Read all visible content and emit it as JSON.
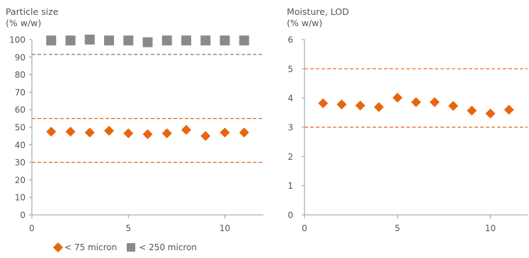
{
  "colors": {
    "diamond": "#e8650e",
    "square": "#8a8a8a",
    "limit_orange": "#e8650e",
    "limit_grey": "#6e6e6e",
    "axis": "#9a9a9a",
    "text": "#555555"
  },
  "chart_data": [
    {
      "type": "scatter",
      "title": "Particle size",
      "subtitle": "(% w/w)",
      "xlim": [
        0,
        12
      ],
      "ylim": [
        0,
        100
      ],
      "xticks": [
        "0",
        "5",
        "10"
      ],
      "yticks": [
        "0",
        "10",
        "20",
        "30",
        "40",
        "50",
        "60",
        "70",
        "80",
        "90",
        "100"
      ],
      "grid": false,
      "series": [
        {
          "name": "< 75 micron",
          "marker": "diamond",
          "x": [
            1,
            2,
            3,
            4,
            5,
            6,
            7,
            8,
            9,
            10,
            11
          ],
          "y": [
            47.5,
            47.5,
            47,
            48,
            46.5,
            46,
            46.5,
            48.5,
            45,
            47,
            47
          ]
        },
        {
          "name": "< 250 micron",
          "marker": "square",
          "x": [
            1,
            2,
            3,
            4,
            5,
            6,
            7,
            8,
            9,
            10,
            11
          ],
          "y": [
            99.5,
            99.5,
            100,
            99.5,
            99.5,
            98.5,
            99.5,
            99.5,
            99.5,
            99.5,
            99.5
          ]
        }
      ],
      "reference_lines": [
        {
          "y": 91.5,
          "style": "dashed",
          "color": "grey"
        },
        {
          "y": 55,
          "style": "dashed",
          "color": "orange"
        },
        {
          "y": 30,
          "style": "dashed",
          "color": "orange"
        }
      ]
    },
    {
      "type": "scatter",
      "title": "Moisture, LOD",
      "subtitle": "(% w/w)",
      "xlim": [
        0,
        12
      ],
      "ylim": [
        0,
        6
      ],
      "xticks": [
        "0",
        "5",
        "10"
      ],
      "yticks": [
        "0",
        "1",
        "2",
        "3",
        "4",
        "5",
        "6"
      ],
      "grid": false,
      "series": [
        {
          "name": "",
          "marker": "diamond",
          "x": [
            1,
            2,
            3,
            4,
            5,
            6,
            7,
            8,
            9,
            10,
            11
          ],
          "y": [
            3.82,
            3.78,
            3.74,
            3.69,
            4.01,
            3.86,
            3.86,
            3.73,
            3.57,
            3.47,
            3.6
          ]
        }
      ],
      "reference_lines": [
        {
          "y": 5,
          "style": "dashed",
          "color": "orange"
        },
        {
          "y": 3,
          "style": "dashed",
          "color": "orange"
        }
      ]
    }
  ],
  "legend": {
    "position": "bottom-left",
    "items": [
      {
        "label": "< 75 micron",
        "marker": "diamond"
      },
      {
        "label": "< 250 micron",
        "marker": "square"
      }
    ]
  }
}
